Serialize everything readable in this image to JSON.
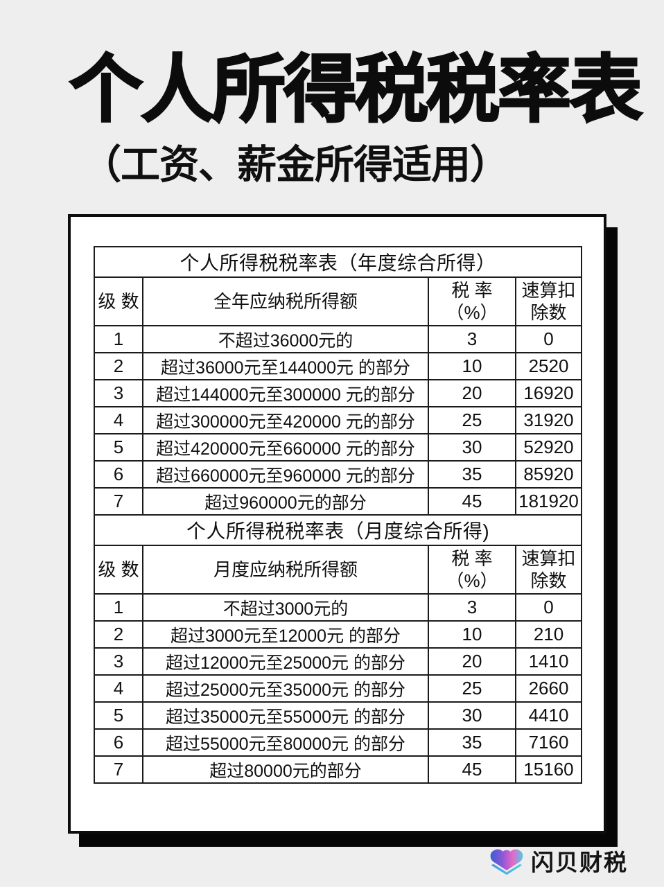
{
  "page": {
    "title": "个人所得税税率表",
    "subtitle": "（工资、薪金所得适用）",
    "bg_color": "#eeeeee",
    "card_border_color": "#0d0d0d",
    "shadow_color": "#060606"
  },
  "tables": [
    {
      "section_title": "个人所得税税率表（年度综合所得）",
      "headers": {
        "level": "级 数",
        "income": "全年应纳税所得额",
        "rate_line1": "税 率",
        "rate_line2": "（%）",
        "deduct_line1": "速算扣",
        "deduct_line2": "除数"
      },
      "rows": [
        {
          "level": "1",
          "income": "不超过36000元的",
          "rate": "3",
          "deduction": "0"
        },
        {
          "level": "2",
          "income": "超过36000元至144000元 的部分",
          "rate": "10",
          "deduction": "2520"
        },
        {
          "level": "3",
          "income": "超过144000元至300000 元的部分",
          "rate": "20",
          "deduction": "16920"
        },
        {
          "level": "4",
          "income": "超过300000元至420000 元的部分",
          "rate": "25",
          "deduction": "31920"
        },
        {
          "level": "5",
          "income": "超过420000元至660000 元的部分",
          "rate": "30",
          "deduction": "52920"
        },
        {
          "level": "6",
          "income": "超过660000元至960000 元的部分",
          "rate": "35",
          "deduction": "85920"
        },
        {
          "level": "7",
          "income": "超过960000元的部分",
          "rate": "45",
          "deduction": "181920"
        }
      ]
    },
    {
      "section_title": "个人所得税税率表（月度综合所得)",
      "headers": {
        "level": "级 数",
        "income": "月度应纳税所得额",
        "rate_line1": "税 率",
        "rate_line2": "（%）",
        "deduct_line1": "速算扣",
        "deduct_line2": "除数"
      },
      "rows": [
        {
          "level": "1",
          "income": "不超过3000元的",
          "rate": "3",
          "deduction": "0"
        },
        {
          "level": "2",
          "income": "超过3000元至12000元 的部分",
          "rate": "10",
          "deduction": "210"
        },
        {
          "level": "3",
          "income": "超过12000元至25000元 的部分",
          "rate": "20",
          "deduction": "1410"
        },
        {
          "level": "4",
          "income": "超过25000元至35000元 的部分",
          "rate": "25",
          "deduction": "2660"
        },
        {
          "level": "5",
          "income": "超过35000元至55000元 的部分",
          "rate": "30",
          "deduction": "4410"
        },
        {
          "level": "6",
          "income": "超过55000元至80000元 的部分",
          "rate": "35",
          "deduction": "7160"
        },
        {
          "level": "7",
          "income": "超过80000元的部分",
          "rate": "45",
          "deduction": "15160"
        }
      ]
    }
  ],
  "footer": {
    "brand": "闪贝财税",
    "logo": {
      "gradient_main": [
        "#3b5fd0",
        "#8e58d8",
        "#e567c5",
        "#55c8e8"
      ],
      "gradient_base": [
        "#3f9be0",
        "#56d2e2"
      ]
    }
  }
}
